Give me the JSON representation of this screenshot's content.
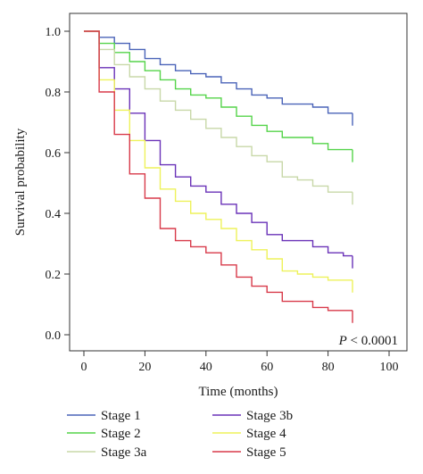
{
  "chart_data": {
    "type": "line",
    "step": true,
    "xlabel": "Time (months)",
    "ylabel": "Survival probability",
    "xlim": [
      0,
      100
    ],
    "ylim": [
      0,
      1
    ],
    "xticks": [
      0,
      20,
      40,
      60,
      80,
      100
    ],
    "yticks": [
      "0.0",
      "0.2",
      "0.4",
      "0.6",
      "0.8",
      "1.0"
    ],
    "grid": false,
    "legend_position": "bottom",
    "annotation": {
      "prefix": "P",
      "rest": " < 0.0001"
    },
    "series": [
      {
        "name": "Stage 1",
        "color": "#4a63b8",
        "x": [
          0,
          5,
          10,
          15,
          20,
          25,
          30,
          35,
          40,
          45,
          50,
          55,
          60,
          65,
          70,
          75,
          80,
          85,
          88
        ],
        "y": [
          1.0,
          0.98,
          0.96,
          0.94,
          0.91,
          0.89,
          0.87,
          0.86,
          0.85,
          0.83,
          0.81,
          0.79,
          0.78,
          0.76,
          0.76,
          0.75,
          0.73,
          0.73,
          0.73
        ]
      },
      {
        "name": "Stage 2",
        "color": "#55d44a",
        "x": [
          0,
          5,
          10,
          15,
          20,
          25,
          30,
          35,
          40,
          45,
          50,
          55,
          60,
          65,
          70,
          75,
          80,
          85,
          88
        ],
        "y": [
          1.0,
          0.96,
          0.93,
          0.9,
          0.87,
          0.84,
          0.81,
          0.79,
          0.78,
          0.75,
          0.72,
          0.69,
          0.67,
          0.65,
          0.65,
          0.63,
          0.61,
          0.61,
          0.61
        ]
      },
      {
        "name": "Stage 3a",
        "color": "#c8d8a8",
        "x": [
          0,
          5,
          10,
          15,
          20,
          25,
          30,
          35,
          40,
          45,
          50,
          55,
          60,
          65,
          70,
          75,
          80,
          85,
          88
        ],
        "y": [
          1.0,
          0.94,
          0.89,
          0.85,
          0.81,
          0.77,
          0.74,
          0.71,
          0.68,
          0.65,
          0.62,
          0.59,
          0.57,
          0.52,
          0.51,
          0.49,
          0.47,
          0.47,
          0.47
        ]
      },
      {
        "name": "Stage 3b",
        "color": "#6a32b8",
        "x": [
          0,
          5,
          10,
          15,
          20,
          25,
          30,
          35,
          40,
          45,
          50,
          55,
          60,
          65,
          70,
          75,
          80,
          85,
          88
        ],
        "y": [
          1.0,
          0.88,
          0.81,
          0.73,
          0.64,
          0.56,
          0.52,
          0.49,
          0.47,
          0.43,
          0.4,
          0.37,
          0.33,
          0.31,
          0.31,
          0.29,
          0.27,
          0.26,
          0.26
        ]
      },
      {
        "name": "Stage 4",
        "color": "#eef25a",
        "x": [
          0,
          5,
          10,
          15,
          20,
          25,
          30,
          35,
          40,
          45,
          50,
          55,
          60,
          65,
          70,
          75,
          80,
          85,
          88
        ],
        "y": [
          1.0,
          0.84,
          0.74,
          0.64,
          0.55,
          0.48,
          0.44,
          0.4,
          0.38,
          0.35,
          0.31,
          0.28,
          0.25,
          0.21,
          0.2,
          0.19,
          0.18,
          0.18,
          0.18
        ]
      },
      {
        "name": "Stage 5",
        "color": "#d83a4a",
        "x": [
          0,
          5,
          10,
          15,
          20,
          25,
          30,
          35,
          40,
          45,
          50,
          55,
          60,
          65,
          70,
          75,
          80,
          85,
          88
        ],
        "y": [
          1.0,
          0.8,
          0.66,
          0.53,
          0.45,
          0.35,
          0.31,
          0.29,
          0.27,
          0.23,
          0.19,
          0.16,
          0.14,
          0.11,
          0.11,
          0.09,
          0.08,
          0.08,
          0.08
        ]
      }
    ]
  }
}
